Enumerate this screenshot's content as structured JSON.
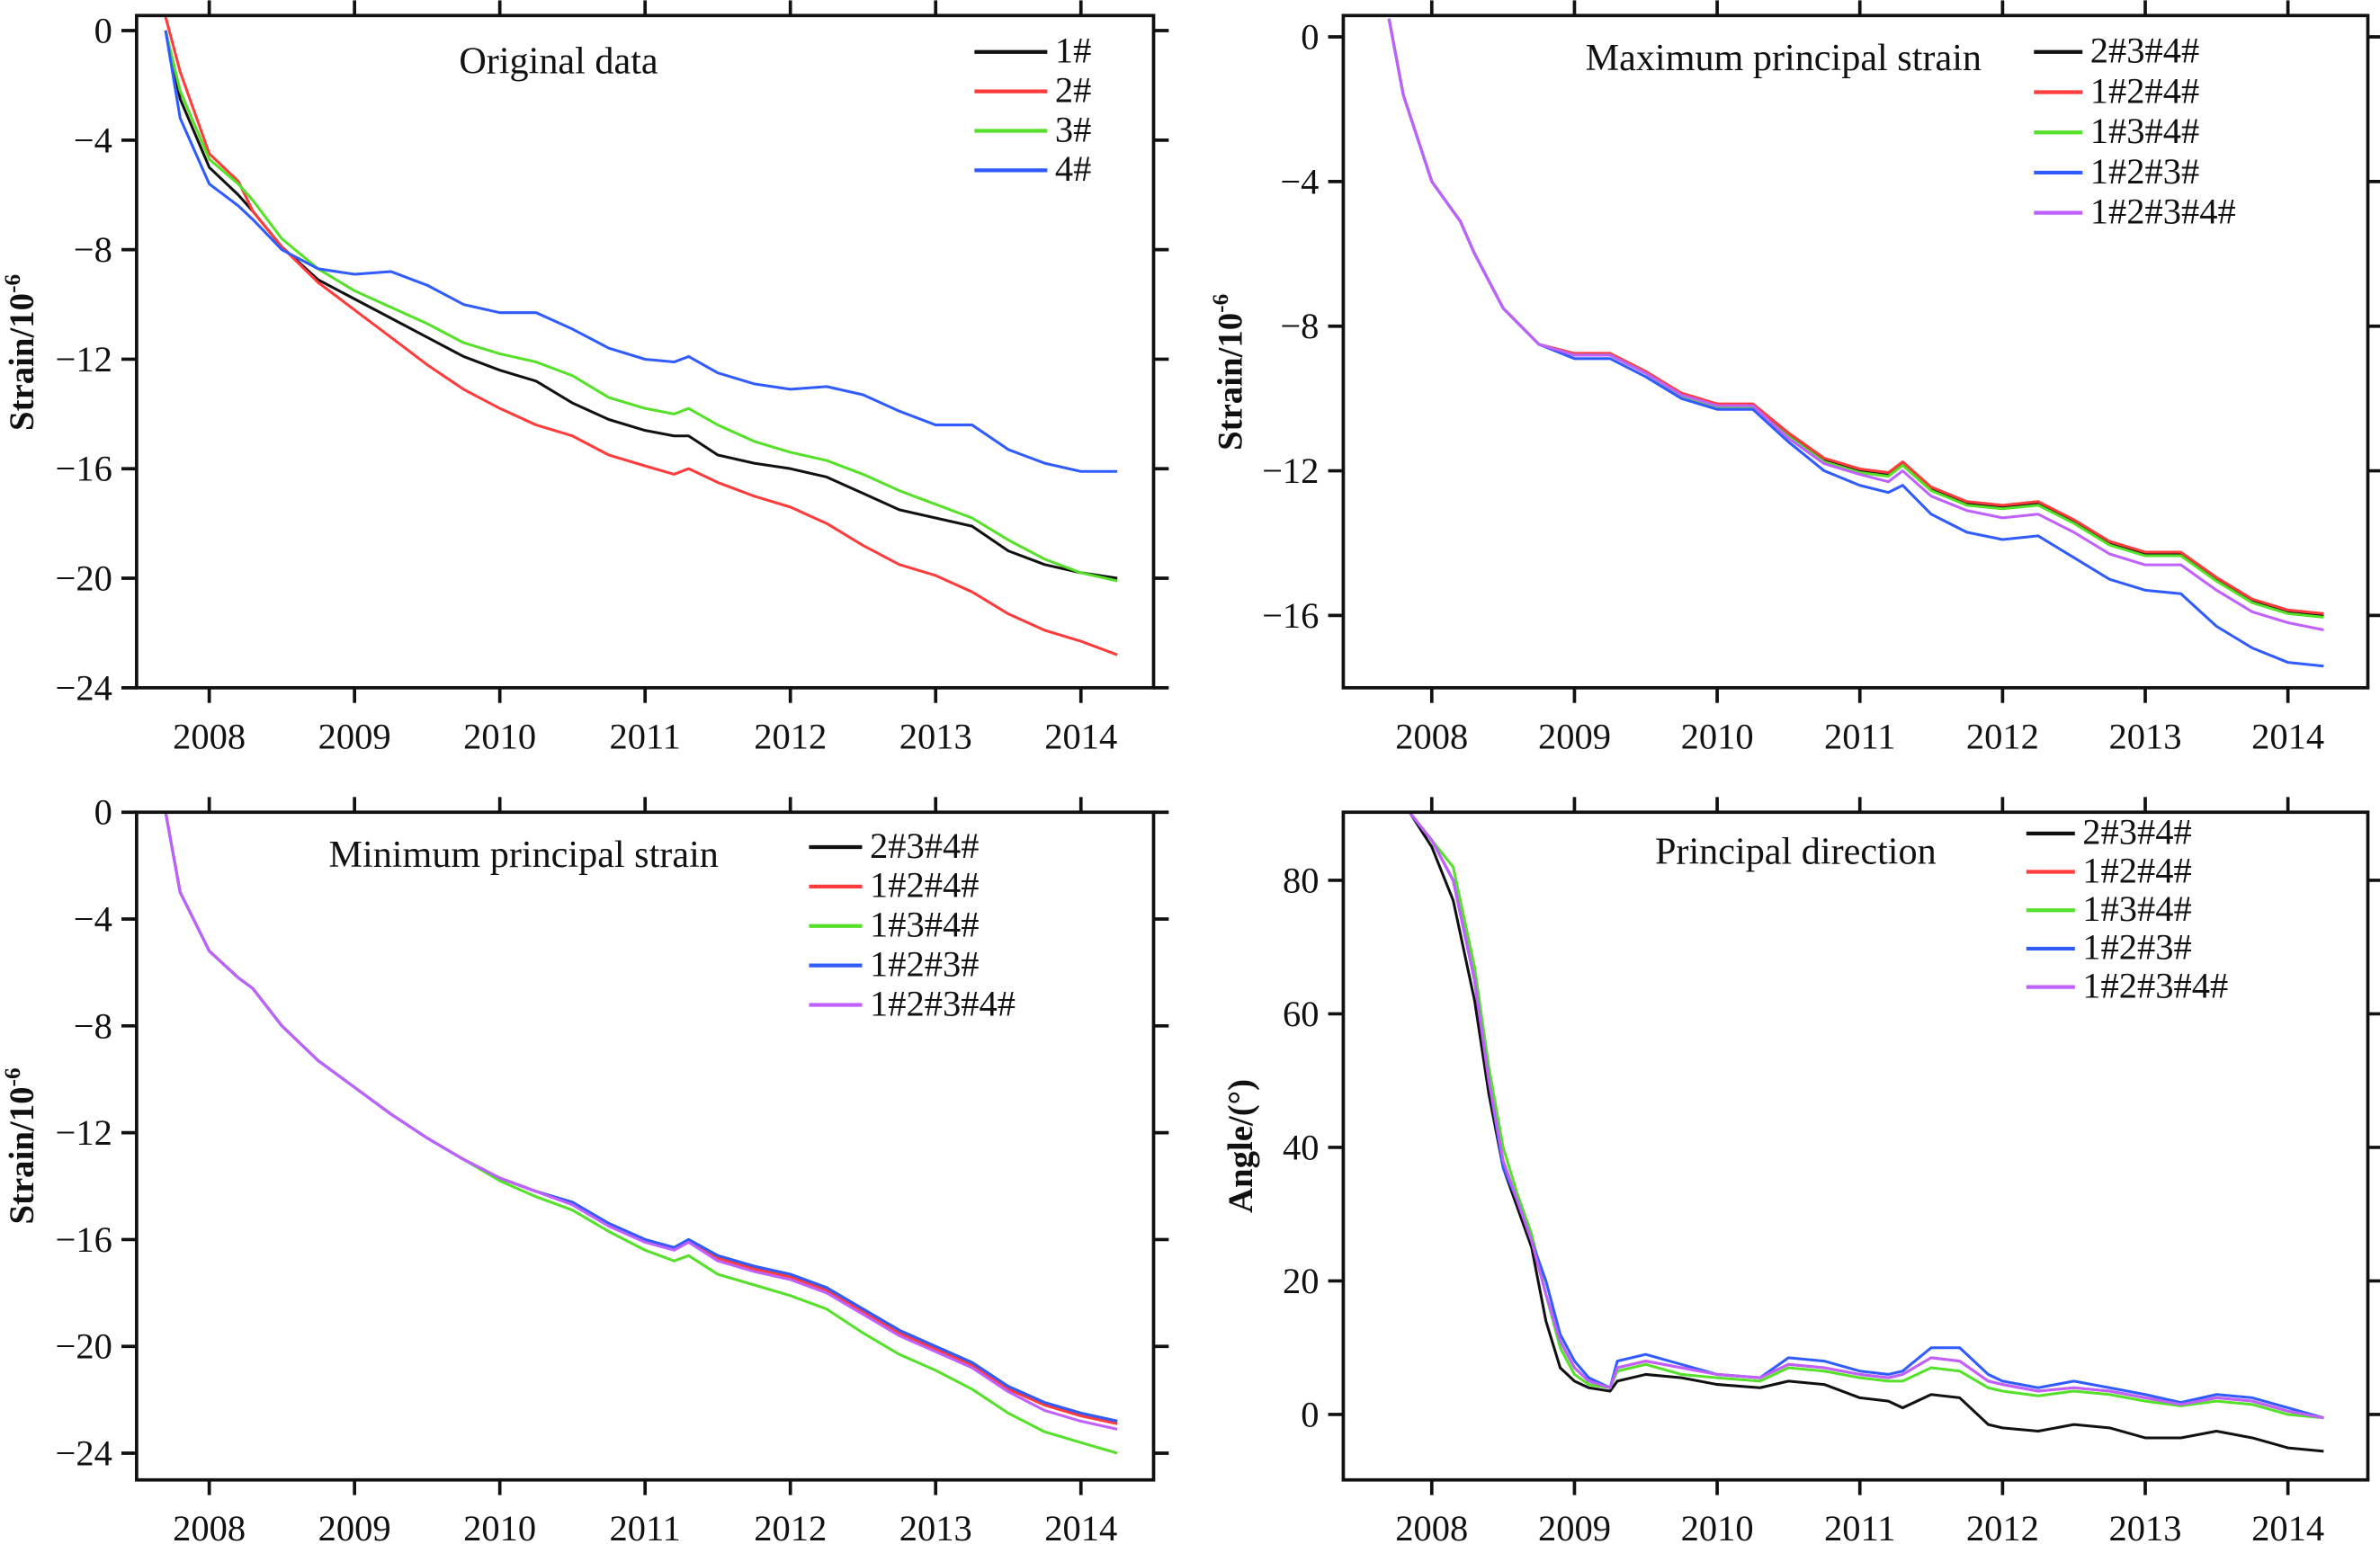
{
  "colors": {
    "black": "#111111",
    "red": "#ff3b3b",
    "green": "#55e02a",
    "blue": "#2f5bff",
    "purple": "#c060ff"
  },
  "chart_data": [
    {
      "type": "line",
      "title": "Original data",
      "xlabel": "",
      "ylabel": "Strain/10",
      "ylabel_sup": "-6",
      "xlim": [
        2007.5,
        2014.5
      ],
      "ylim": [
        -24,
        0.55
      ],
      "xticks": [
        2008,
        2009,
        2010,
        2011,
        2012,
        2013,
        2014
      ],
      "yticks": [
        0,
        -4,
        -8,
        -12,
        -16,
        -20,
        -24
      ],
      "legend_position": "top-right",
      "grid": false,
      "x": [
        2007.7,
        2007.8,
        2008.0,
        2008.2,
        2008.3,
        2008.5,
        2008.75,
        2009.0,
        2009.25,
        2009.5,
        2009.75,
        2010.0,
        2010.25,
        2010.5,
        2010.75,
        2011.0,
        2011.2,
        2011.3,
        2011.5,
        2011.75,
        2012.0,
        2012.25,
        2012.5,
        2012.75,
        2013.0,
        2013.25,
        2013.5,
        2013.75,
        2014.0,
        2014.25
      ],
      "series": [
        {
          "name": "1#",
          "color": "black",
          "values": [
            0,
            -2.5,
            -5,
            -6,
            -6.6,
            -7.9,
            -9.1,
            -9.8,
            -10.5,
            -11.2,
            -11.9,
            -12.4,
            -12.8,
            -13.6,
            -14.2,
            -14.6,
            -14.8,
            -14.8,
            -15.5,
            -15.8,
            -16,
            -16.3,
            -16.9,
            -17.5,
            -17.8,
            -18.1,
            -19,
            -19.5,
            -19.8,
            -20
          ]
        },
        {
          "name": "2#",
          "color": "red",
          "values": [
            0.5,
            -1.5,
            -4.5,
            -5.5,
            -6.6,
            -7.9,
            -9.2,
            -10.2,
            -11.2,
            -12.2,
            -13.1,
            -13.8,
            -14.4,
            -14.8,
            -15.5,
            -15.9,
            -16.2,
            -16,
            -16.5,
            -17,
            -17.4,
            -18,
            -18.8,
            -19.5,
            -19.9,
            -20.5,
            -21.3,
            -21.9,
            -22.3,
            -22.8
          ]
        },
        {
          "name": "3#",
          "color": "green",
          "values": [
            0,
            -2.2,
            -4.7,
            -5.6,
            -6.2,
            -7.6,
            -8.7,
            -9.5,
            -10.1,
            -10.7,
            -11.4,
            -11.8,
            -12.1,
            -12.6,
            -13.4,
            -13.8,
            -14,
            -13.8,
            -14.4,
            -15,
            -15.4,
            -15.7,
            -16.2,
            -16.8,
            -17.3,
            -17.8,
            -18.6,
            -19.3,
            -19.8,
            -20.1
          ]
        },
        {
          "name": "4#",
          "color": "blue",
          "values": [
            0,
            -3.2,
            -5.6,
            -6.4,
            -6.9,
            -8,
            -8.7,
            -8.9,
            -8.8,
            -9.3,
            -10,
            -10.3,
            -10.3,
            -10.9,
            -11.6,
            -12,
            -12.1,
            -11.9,
            -12.5,
            -12.9,
            -13.1,
            -13,
            -13.3,
            -13.9,
            -14.4,
            -14.4,
            -15.3,
            -15.8,
            -16.1,
            -16.1
          ]
        }
      ]
    },
    {
      "type": "line",
      "title": "Maximum principal strain",
      "xlabel": "",
      "ylabel": "Strain/10",
      "ylabel_sup": "-6",
      "xlim": [
        2007.38,
        2014.56
      ],
      "ylim": [
        -18,
        0.59
      ],
      "xticks": [
        2008,
        2009,
        2010,
        2011,
        2012,
        2013,
        2014
      ],
      "yticks": [
        0,
        -4,
        -8,
        -12,
        -16
      ],
      "legend_position": "top-right",
      "grid": false,
      "x": [
        2007.7,
        2007.8,
        2008.0,
        2008.2,
        2008.3,
        2008.5,
        2008.75,
        2009.0,
        2009.25,
        2009.5,
        2009.75,
        2010.0,
        2010.25,
        2010.5,
        2010.75,
        2011.0,
        2011.2,
        2011.3,
        2011.5,
        2011.75,
        2012.0,
        2012.25,
        2012.5,
        2012.75,
        2013.0,
        2013.25,
        2013.5,
        2013.75,
        2014.0,
        2014.25
      ],
      "series": [
        {
          "name": "2#3#4#",
          "color": "black",
          "values": [
            0.5,
            -1.6,
            -4,
            -5.1,
            -6,
            -7.5,
            -8.5,
            -8.8,
            -8.8,
            -9.3,
            -9.9,
            -10.2,
            -10.2,
            -11,
            -11.7,
            -12,
            -12.1,
            -11.8,
            -12.5,
            -12.9,
            -13,
            -12.9,
            -13.4,
            -14,
            -14.3,
            -14.3,
            -15,
            -15.6,
            -15.9,
            -16
          ]
        },
        {
          "name": "1#2#4#",
          "color": "red",
          "values": [
            0.5,
            -1.6,
            -4,
            -5.1,
            -6,
            -7.5,
            -8.5,
            -8.75,
            -8.75,
            -9.25,
            -9.85,
            -10.15,
            -10.15,
            -10.95,
            -11.65,
            -11.95,
            -12.05,
            -11.75,
            -12.45,
            -12.85,
            -12.95,
            -12.85,
            -13.35,
            -13.95,
            -14.25,
            -14.25,
            -14.95,
            -15.55,
            -15.85,
            -15.95
          ]
        },
        {
          "name": "1#3#4#",
          "color": "green",
          "values": [
            0.5,
            -1.6,
            -4,
            -5.1,
            -6,
            -7.5,
            -8.5,
            -8.8,
            -8.8,
            -9.3,
            -9.95,
            -10.25,
            -10.25,
            -11.05,
            -11.75,
            -12.05,
            -12.15,
            -11.85,
            -12.55,
            -12.95,
            -13.05,
            -12.95,
            -13.45,
            -14.05,
            -14.35,
            -14.35,
            -15.05,
            -15.65,
            -15.95,
            -16.05
          ]
        },
        {
          "name": "1#2#3#",
          "color": "blue",
          "values": [
            0.5,
            -1.6,
            -4,
            -5.1,
            -6,
            -7.5,
            -8.5,
            -8.9,
            -8.9,
            -9.4,
            -10,
            -10.3,
            -10.3,
            -11.2,
            -12,
            -12.4,
            -12.6,
            -12.4,
            -13.2,
            -13.7,
            -13.9,
            -13.8,
            -14.4,
            -15,
            -15.3,
            -15.4,
            -16.3,
            -16.9,
            -17.3,
            -17.4
          ]
        },
        {
          "name": "1#2#3#4#",
          "color": "purple",
          "values": [
            0.5,
            -1.6,
            -4,
            -5.1,
            -6,
            -7.5,
            -8.5,
            -8.8,
            -8.8,
            -9.3,
            -9.9,
            -10.2,
            -10.2,
            -11.1,
            -11.8,
            -12.1,
            -12.3,
            -12,
            -12.7,
            -13.1,
            -13.3,
            -13.2,
            -13.7,
            -14.3,
            -14.6,
            -14.6,
            -15.3,
            -15.9,
            -16.2,
            -16.4
          ]
        }
      ]
    },
    {
      "type": "line",
      "title": "Minimum principal strain",
      "xlabel": "",
      "ylabel": "Strain/10",
      "ylabel_sup": "-6",
      "xlim": [
        2007.5,
        2014.5
      ],
      "ylim": [
        -25,
        0
      ],
      "xticks": [
        2008,
        2009,
        2010,
        2011,
        2012,
        2013,
        2014
      ],
      "yticks": [
        0,
        -4,
        -8,
        -12,
        -16,
        -20,
        -24
      ],
      "legend_position": "top-right",
      "grid": false,
      "x": [
        2007.7,
        2007.8,
        2008.0,
        2008.2,
        2008.3,
        2008.5,
        2008.75,
        2009.0,
        2009.25,
        2009.5,
        2009.75,
        2010.0,
        2010.25,
        2010.5,
        2010.75,
        2011.0,
        2011.2,
        2011.3,
        2011.5,
        2011.75,
        2012.0,
        2012.25,
        2012.5,
        2012.75,
        2013.0,
        2013.25,
        2013.5,
        2013.75,
        2014.0,
        2014.25
      ],
      "series": [
        {
          "name": "2#3#4#",
          "color": "black",
          "values": [
            0,
            -3,
            -5.2,
            -6.2,
            -6.6,
            -8,
            -9.3,
            -10.3,
            -11.3,
            -12.2,
            -13,
            -13.7,
            -14.2,
            -14.6,
            -15.4,
            -16,
            -16.3,
            -16,
            -16.6,
            -17,
            -17.3,
            -17.8,
            -18.6,
            -19.4,
            -20,
            -20.6,
            -21.5,
            -22.1,
            -22.5,
            -22.8
          ]
        },
        {
          "name": "1#2#4#",
          "color": "red",
          "values": [
            0,
            -3,
            -5.2,
            -6.2,
            -6.6,
            -8,
            -9.3,
            -10.3,
            -11.3,
            -12.2,
            -13,
            -13.7,
            -14.2,
            -14.65,
            -15.45,
            -16.05,
            -16.35,
            -16.05,
            -16.7,
            -17.1,
            -17.4,
            -17.9,
            -18.7,
            -19.5,
            -20.1,
            -20.7,
            -21.6,
            -22.2,
            -22.6,
            -22.9
          ]
        },
        {
          "name": "1#3#4#",
          "color": "green",
          "values": [
            0,
            -3,
            -5.2,
            -6.2,
            -6.6,
            -8,
            -9.3,
            -10.3,
            -11.3,
            -12.2,
            -13,
            -13.8,
            -14.4,
            -14.9,
            -15.7,
            -16.4,
            -16.8,
            -16.6,
            -17.3,
            -17.7,
            -18.1,
            -18.6,
            -19.5,
            -20.3,
            -20.9,
            -21.6,
            -22.5,
            -23.2,
            -23.6,
            -24
          ]
        },
        {
          "name": "1#2#3#",
          "color": "blue",
          "values": [
            0,
            -3,
            -5.2,
            -6.2,
            -6.6,
            -8,
            -9.3,
            -10.3,
            -11.3,
            -12.2,
            -13,
            -13.7,
            -14.2,
            -14.6,
            -15.4,
            -16,
            -16.3,
            -16,
            -16.6,
            -17,
            -17.3,
            -17.8,
            -18.6,
            -19.4,
            -20,
            -20.6,
            -21.5,
            -22.1,
            -22.5,
            -22.8
          ]
        },
        {
          "name": "1#2#3#4#",
          "color": "purple",
          "values": [
            0,
            -3,
            -5.2,
            -6.2,
            -6.6,
            -8,
            -9.3,
            -10.3,
            -11.3,
            -12.2,
            -13,
            -13.7,
            -14.2,
            -14.7,
            -15.5,
            -16.1,
            -16.4,
            -16.1,
            -16.8,
            -17.2,
            -17.5,
            -18,
            -18.8,
            -19.6,
            -20.2,
            -20.8,
            -21.7,
            -22.4,
            -22.8,
            -23.1
          ]
        }
      ]
    },
    {
      "type": "line",
      "title": "Principal direction",
      "xlabel": "",
      "ylabel": "Angle/(°)",
      "ylabel_sup": "",
      "xlim": [
        2007.38,
        2014.56
      ],
      "ylim": [
        -9.8,
        90.2
      ],
      "xticks": [
        2008,
        2009,
        2010,
        2011,
        2012,
        2013,
        2014
      ],
      "yticks": [
        0,
        20,
        40,
        60,
        80
      ],
      "legend_position": "top-right",
      "grid": false,
      "x": [
        2007.85,
        2008.0,
        2008.15,
        2008.3,
        2008.4,
        2008.5,
        2008.6,
        2008.7,
        2008.8,
        2008.9,
        2009.0,
        2009.1,
        2009.25,
        2009.3,
        2009.5,
        2009.75,
        2010.0,
        2010.3,
        2010.5,
        2010.75,
        2011.0,
        2011.2,
        2011.3,
        2011.5,
        2011.7,
        2011.9,
        2012.0,
        2012.25,
        2012.5,
        2012.75,
        2013.0,
        2013.25,
        2013.5,
        2013.75,
        2014.0,
        2014.25
      ],
      "series": [
        {
          "name": "2#3#4#",
          "color": "black",
          "values": [
            90,
            85,
            77,
            62,
            48,
            37,
            31,
            25,
            14,
            7,
            5,
            4,
            3.5,
            5,
            6,
            5.5,
            4.5,
            4,
            5,
            4.5,
            2.5,
            2,
            1,
            3,
            2.5,
            -1.5,
            -2,
            -2.5,
            -1.5,
            -2,
            -3.5,
            -3.5,
            -2.5,
            -3.5,
            -5,
            -5.5
          ]
        },
        {
          "name": "1#2#4#",
          "color": "red",
          "values": [
            90,
            86,
            80,
            65,
            50,
            38,
            32,
            26,
            18,
            11,
            7,
            5,
            4,
            7,
            8,
            7,
            6,
            5.5,
            7.5,
            7,
            6,
            5.5,
            6,
            8.5,
            8,
            5,
            4.5,
            3.5,
            4,
            3.5,
            2.5,
            1.5,
            2.5,
            2,
            0.5,
            -0.5
          ]
        },
        {
          "name": "1#3#4#",
          "color": "green",
          "values": [
            90,
            86,
            82,
            67,
            52,
            40,
            33,
            27,
            18,
            10,
            6,
            4.5,
            4,
            6.5,
            7.5,
            6,
            5.5,
            5,
            7,
            6.5,
            5.5,
            5,
            5,
            7,
            6.5,
            4,
            3.5,
            2.8,
            3.5,
            3,
            2,
            1.3,
            2,
            1.5,
            0,
            -0.5
          ]
        },
        {
          "name": "1#2#3#",
          "color": "blue",
          "values": [
            90,
            86,
            80,
            65,
            50,
            37,
            32,
            26,
            20,
            12,
            8,
            5.5,
            4,
            8,
            9,
            7.5,
            6,
            5.5,
            8.5,
            8,
            6.5,
            6,
            6.5,
            10,
            10,
            6,
            5,
            4,
            5,
            4,
            3,
            1.8,
            3,
            2.5,
            1,
            -0.5
          ]
        },
        {
          "name": "1#2#3#4#",
          "color": "purple",
          "values": [
            90,
            86,
            80,
            65,
            50,
            38,
            32,
            26,
            18,
            11,
            7,
            5,
            4,
            7,
            8,
            7,
            6,
            5.5,
            7.5,
            7,
            6,
            5.5,
            6,
            8.5,
            8,
            5,
            4.5,
            3.5,
            4,
            3.5,
            2.5,
            1.5,
            2.5,
            2,
            0.5,
            -0.5
          ]
        }
      ]
    }
  ]
}
